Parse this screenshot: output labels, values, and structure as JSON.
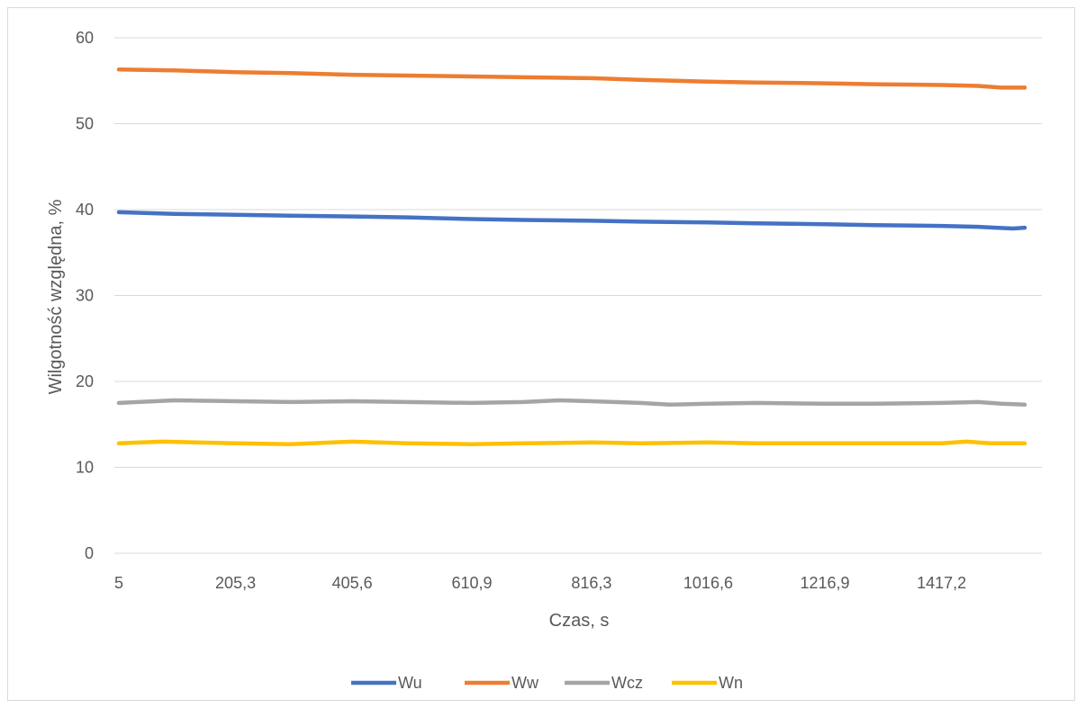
{
  "chart_data": {
    "type": "line",
    "title": "",
    "xlabel": "Czas, s",
    "ylabel": "Wilgotność względna, %",
    "ylim": [
      0,
      60
    ],
    "y_ticks": [
      "0",
      "10",
      "20",
      "30",
      "40",
      "50",
      "60"
    ],
    "x_range": [
      5,
      1560
    ],
    "x_ticks": [
      "5",
      "205,3",
      "405,6",
      "610,9",
      "816,3",
      "1016,6",
      "1216,9",
      "1417,2"
    ],
    "x_tick_values": [
      5,
      205.3,
      405.6,
      610.9,
      816.3,
      1016.6,
      1216.9,
      1417.2
    ],
    "grid": true,
    "legend_position": "bottom",
    "series": [
      {
        "name": "Wu",
        "color": "#4472C4",
        "points": [
          [
            5,
            39.7
          ],
          [
            100,
            39.5
          ],
          [
            205.3,
            39.4
          ],
          [
            300,
            39.3
          ],
          [
            405.6,
            39.2
          ],
          [
            500,
            39.1
          ],
          [
            610.9,
            38.9
          ],
          [
            700,
            38.8
          ],
          [
            816.3,
            38.7
          ],
          [
            900,
            38.6
          ],
          [
            1016.6,
            38.5
          ],
          [
            1100,
            38.4
          ],
          [
            1216.9,
            38.3
          ],
          [
            1300,
            38.2
          ],
          [
            1417.2,
            38.1
          ],
          [
            1480,
            38.0
          ],
          [
            1510,
            37.9
          ],
          [
            1540,
            37.8
          ],
          [
            1560,
            37.9
          ]
        ]
      },
      {
        "name": "Ww",
        "color": "#ED7D31",
        "points": [
          [
            5,
            56.3
          ],
          [
            100,
            56.2
          ],
          [
            205.3,
            56.0
          ],
          [
            300,
            55.9
          ],
          [
            405.6,
            55.7
          ],
          [
            500,
            55.6
          ],
          [
            610.9,
            55.5
          ],
          [
            700,
            55.4
          ],
          [
            816.3,
            55.3
          ],
          [
            900,
            55.1
          ],
          [
            1016.6,
            54.9
          ],
          [
            1100,
            54.8
          ],
          [
            1216.9,
            54.7
          ],
          [
            1300,
            54.6
          ],
          [
            1417.2,
            54.5
          ],
          [
            1480,
            54.4
          ],
          [
            1520,
            54.2
          ],
          [
            1560,
            54.2
          ]
        ]
      },
      {
        "name": "Wcz",
        "color": "#A5A5A5",
        "points": [
          [
            5,
            17.5
          ],
          [
            100,
            17.8
          ],
          [
            205.3,
            17.7
          ],
          [
            300,
            17.6
          ],
          [
            405.6,
            17.7
          ],
          [
            500,
            17.6
          ],
          [
            610.9,
            17.5
          ],
          [
            700,
            17.6
          ],
          [
            760,
            17.8
          ],
          [
            816.3,
            17.7
          ],
          [
            900,
            17.5
          ],
          [
            950,
            17.3
          ],
          [
            1016.6,
            17.4
          ],
          [
            1100,
            17.5
          ],
          [
            1216.9,
            17.4
          ],
          [
            1300,
            17.4
          ],
          [
            1417.2,
            17.5
          ],
          [
            1480,
            17.6
          ],
          [
            1520,
            17.4
          ],
          [
            1560,
            17.3
          ]
        ]
      },
      {
        "name": "Wn",
        "color": "#FFC000",
        "points": [
          [
            5,
            12.8
          ],
          [
            80,
            13.0
          ],
          [
            205.3,
            12.8
          ],
          [
            300,
            12.7
          ],
          [
            405.6,
            13.0
          ],
          [
            500,
            12.8
          ],
          [
            610.9,
            12.7
          ],
          [
            700,
            12.8
          ],
          [
            816.3,
            12.9
          ],
          [
            900,
            12.8
          ],
          [
            1016.6,
            12.9
          ],
          [
            1100,
            12.8
          ],
          [
            1216.9,
            12.8
          ],
          [
            1300,
            12.8
          ],
          [
            1417.2,
            12.8
          ],
          [
            1460,
            13.0
          ],
          [
            1500,
            12.8
          ],
          [
            1560,
            12.8
          ]
        ]
      }
    ]
  }
}
